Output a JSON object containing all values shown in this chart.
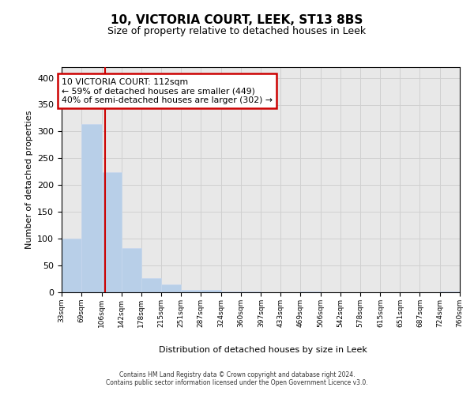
{
  "title": "10, VICTORIA COURT, LEEK, ST13 8BS",
  "subtitle": "Size of property relative to detached houses in Leek",
  "xlabel": "Distribution of detached houses by size in Leek",
  "ylabel": "Number of detached properties",
  "bin_labels": [
    "33sqm",
    "69sqm",
    "106sqm",
    "142sqm",
    "178sqm",
    "215sqm",
    "251sqm",
    "287sqm",
    "324sqm",
    "360sqm",
    "397sqm",
    "433sqm",
    "469sqm",
    "506sqm",
    "542sqm",
    "578sqm",
    "615sqm",
    "651sqm",
    "687sqm",
    "724sqm",
    "760sqm"
  ],
  "bin_edges": [
    33,
    69,
    106,
    142,
    178,
    215,
    251,
    287,
    324,
    360,
    397,
    433,
    469,
    506,
    542,
    578,
    615,
    651,
    687,
    724,
    760
  ],
  "bar_heights": [
    100,
    314,
    224,
    82,
    26,
    15,
    5,
    5,
    1,
    1,
    0,
    0,
    1,
    0,
    0,
    0,
    0,
    0,
    0,
    1
  ],
  "bar_color": "#b8cfe8",
  "bar_edge_color": "#c8d8ee",
  "property_size": 112,
  "vline_color": "#cc0000",
  "annotation_line1": "10 VICTORIA COURT: 112sqm",
  "annotation_line2": "← 59% of detached houses are smaller (449)",
  "annotation_line3": "40% of semi-detached houses are larger (302) →",
  "annotation_box_edge": "#cc0000",
  "ylim": [
    0,
    420
  ],
  "yticks": [
    0,
    50,
    100,
    150,
    200,
    250,
    300,
    350,
    400
  ],
  "grid_color": "#d0d0d0",
  "plot_bg_color": "#e8e8e8",
  "footer_line1": "Contains HM Land Registry data © Crown copyright and database right 2024.",
  "footer_line2": "Contains public sector information licensed under the Open Government Licence v3.0."
}
